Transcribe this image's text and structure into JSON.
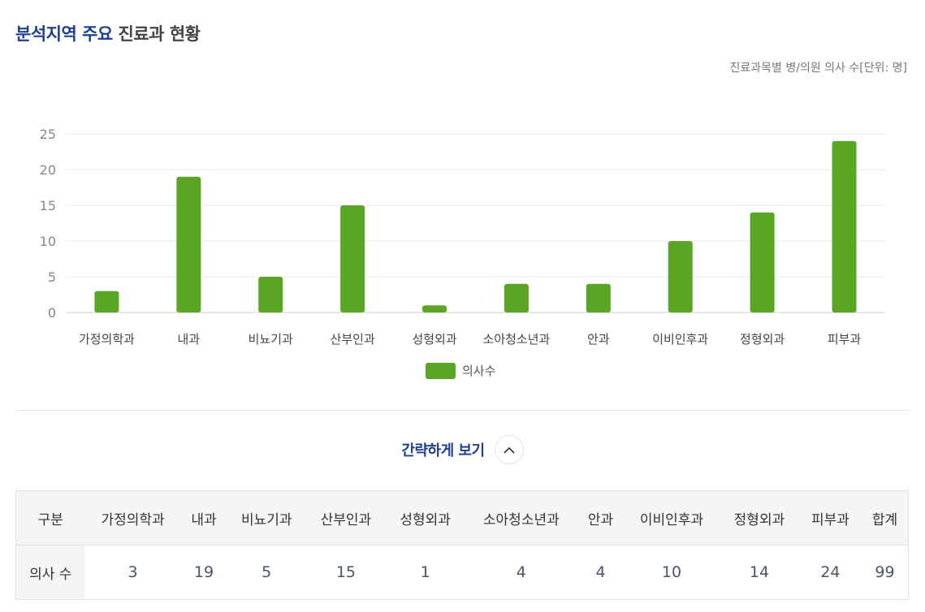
{
  "header": {
    "title_highlight": "분석지역 주요",
    "title_rest": " 진료과 현황",
    "unit_note": "진료과목별 병/의원 의사 수[단위: 명]"
  },
  "chart_data": {
    "type": "bar",
    "categories": [
      "가정의학과",
      "내과",
      "비뇨기과",
      "산부인과",
      "성형외과",
      "소아청소년과",
      "안과",
      "이비인후과",
      "정형외과",
      "피부과"
    ],
    "series": [
      {
        "name": "의사수",
        "values": [
          3,
          19,
          5,
          15,
          1,
          4,
          4,
          10,
          14,
          24
        ]
      }
    ],
    "ylim": [
      0,
      25
    ],
    "yticks": [
      0,
      5,
      10,
      15,
      20,
      25
    ],
    "color": "#5ba524",
    "grid": true,
    "legend": "bottom-center"
  },
  "legend": {
    "label": "의사수"
  },
  "toggle": {
    "label": "간략하게 보기"
  },
  "table": {
    "header_label": "구분",
    "columns": [
      "가정의학과",
      "내과",
      "비뇨기과",
      "산부인과",
      "성형외과",
      "소아청소년과",
      "안과",
      "이비인후과",
      "정형외과",
      "피부과",
      "합계"
    ],
    "row_label": "의사 수",
    "values": [
      "3",
      "19",
      "5",
      "15",
      "1",
      "4",
      "4",
      "10",
      "14",
      "24",
      "99"
    ]
  }
}
